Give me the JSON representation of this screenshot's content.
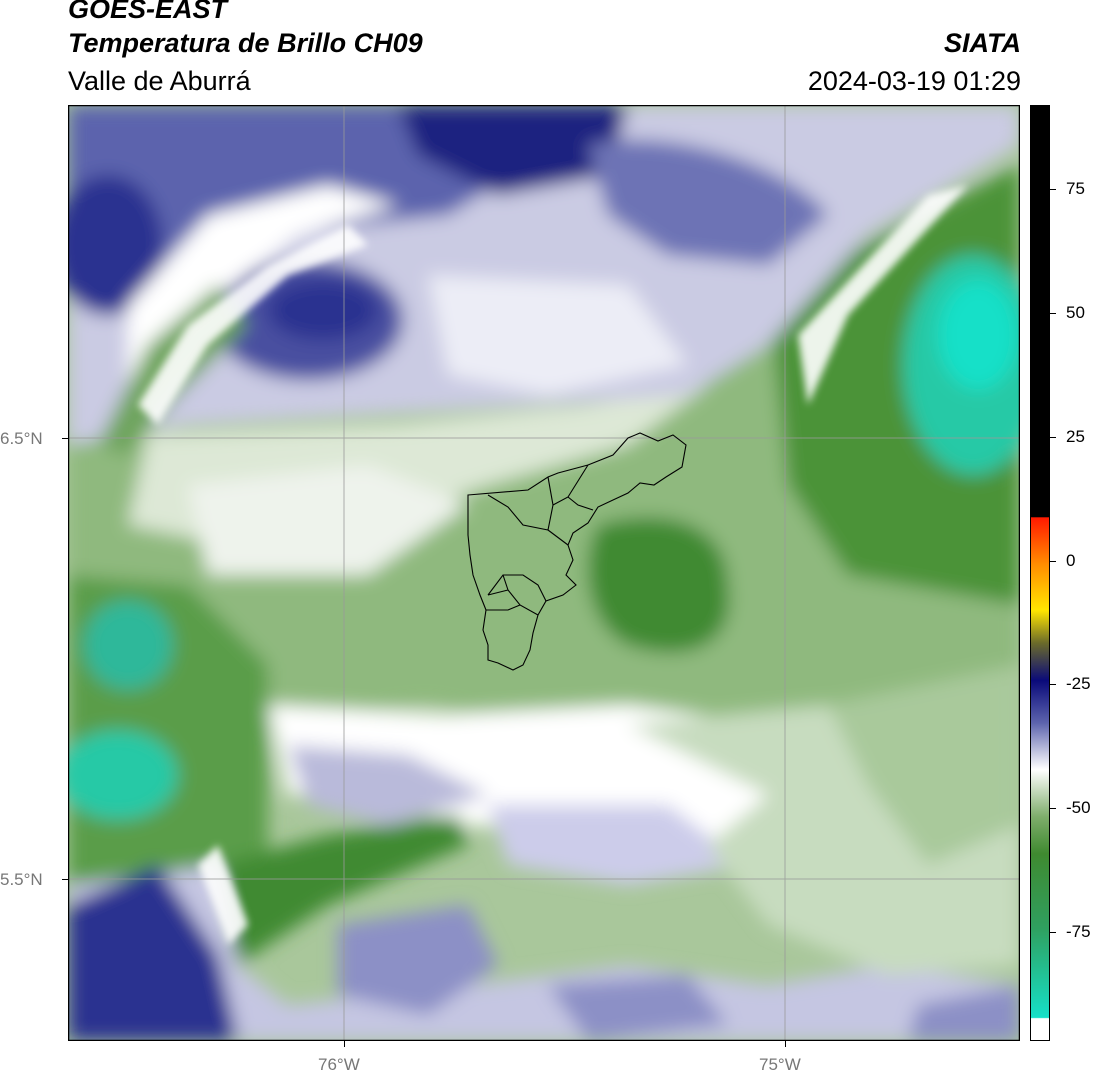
{
  "header": {
    "title_line1": "GOES-EAST",
    "title_line2": "Temperatura de Brillo CH09",
    "subtitle": "Valle de Aburrá",
    "organization": "SIATA",
    "datetime": "2024-03-19 01:29"
  },
  "map": {
    "lat_labels": [
      "6.5°N",
      "5.5°N"
    ],
    "lon_labels": [
      "76°W",
      "75°W"
    ],
    "gridlines": true,
    "palette": {
      "green_dark": "#3f8a30",
      "green_mid": "#7fae6c",
      "green_light": "#cfe0c6",
      "white": "#ffffff",
      "lavender": "#b9bada",
      "blue_mid": "#5c63ad",
      "navy": "#1a2380",
      "cyan": "#16e0c8",
      "boundary": "#000000"
    }
  },
  "colorbar": {
    "ticks": [
      "75",
      "50",
      "25",
      "0",
      "-25",
      "-50",
      "-75"
    ],
    "tick_values": [
      75,
      50,
      25,
      0,
      -25,
      -50,
      -75
    ],
    "range": [
      -97,
      92
    ]
  }
}
